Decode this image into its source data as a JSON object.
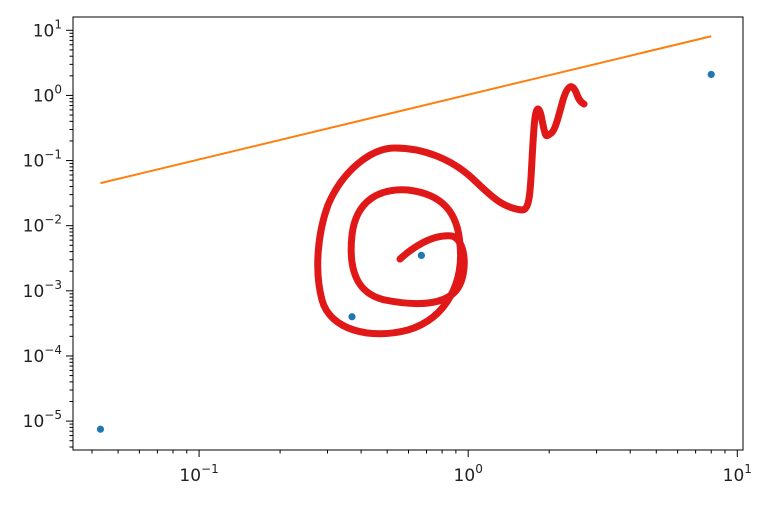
{
  "chart_data": {
    "type": "scatter",
    "title": "",
    "xlabel": "",
    "ylabel": "",
    "x_scale": "log",
    "y_scale": "log",
    "xlim": [
      0.034,
      10.5
    ],
    "ylim": [
      3.6e-06,
      16
    ],
    "grid": false,
    "x_ticks": [
      {
        "value": 0.1,
        "base": "10",
        "exp": "−1"
      },
      {
        "value": 1,
        "base": "10",
        "exp": "0"
      },
      {
        "value": 10,
        "base": "10",
        "exp": "1"
      }
    ],
    "y_ticks": [
      {
        "value": 10,
        "base": "10",
        "exp": "1"
      },
      {
        "value": 1,
        "base": "10",
        "exp": "0"
      },
      {
        "value": 0.1,
        "base": "10",
        "exp": "−1"
      },
      {
        "value": 0.01,
        "base": "10",
        "exp": "−2"
      },
      {
        "value": 0.001,
        "base": "10",
        "exp": "−3"
      },
      {
        "value": 0.0001,
        "base": "10",
        "exp": "−4"
      },
      {
        "value": 1e-05,
        "base": "10",
        "exp": "−5"
      }
    ],
    "series": [
      {
        "kind": "scatter",
        "color": "#1f77b4",
        "x": [
          0.043,
          0.37,
          0.67,
          8.0
        ],
        "y": [
          7.5e-06,
          0.0004,
          0.0035,
          2.1
        ]
      },
      {
        "kind": "line",
        "color": "#ff7f0e",
        "x": [
          0.043,
          8.0
        ],
        "y": [
          0.045,
          8.1
        ]
      }
    ],
    "annotation": {
      "kind": "freehand-scribble",
      "color": "#e01818"
    }
  }
}
